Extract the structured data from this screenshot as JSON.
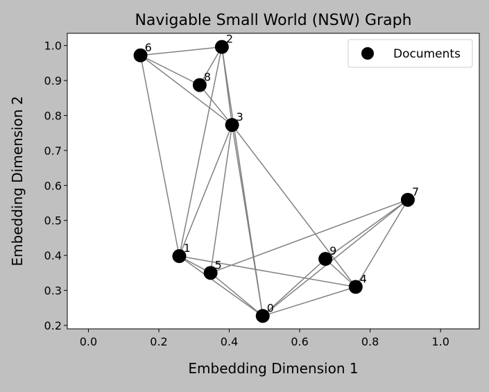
{
  "chart_data": {
    "type": "scatter",
    "title": "Navigable Small World (NSW) Graph",
    "xlabel": "Embedding Dimension 1",
    "ylabel": "Embedding Dimension 2",
    "xlim": [
      -0.06,
      1.11
    ],
    "ylim": [
      0.19,
      1.035
    ],
    "xticks": [
      "0.0",
      "0.2",
      "0.4",
      "0.6",
      "0.8",
      "1.0"
    ],
    "yticks": [
      "0.2",
      "0.3",
      "0.4",
      "0.5",
      "0.6",
      "0.7",
      "0.8",
      "0.9",
      "1.0"
    ],
    "legend": {
      "label": "Documents",
      "placement": "top-right"
    },
    "grid": false,
    "point_color": "#000000",
    "edge_color": "#808080",
    "points": [
      {
        "label": "0",
        "x": 0.495,
        "y": 0.227
      },
      {
        "label": "1",
        "x": 0.258,
        "y": 0.398
      },
      {
        "label": "2",
        "x": 0.379,
        "y": 0.996
      },
      {
        "label": "3",
        "x": 0.408,
        "y": 0.773
      },
      {
        "label": "4",
        "x": 0.759,
        "y": 0.31
      },
      {
        "label": "5",
        "x": 0.347,
        "y": 0.35
      },
      {
        "label": "6",
        "x": 0.148,
        "y": 0.972
      },
      {
        "label": "7",
        "x": 0.907,
        "y": 0.559
      },
      {
        "label": "8",
        "x": 0.316,
        "y": 0.887
      },
      {
        "label": "9",
        "x": 0.673,
        "y": 0.39
      }
    ],
    "edges": [
      [
        6,
        2
      ],
      [
        6,
        8
      ],
      [
        6,
        3
      ],
      [
        6,
        1
      ],
      [
        2,
        8
      ],
      [
        2,
        3
      ],
      [
        2,
        1
      ],
      [
        2,
        0
      ],
      [
        8,
        3
      ],
      [
        3,
        1
      ],
      [
        3,
        5
      ],
      [
        3,
        0
      ],
      [
        3,
        4
      ],
      [
        1,
        5
      ],
      [
        1,
        0
      ],
      [
        1,
        4
      ],
      [
        5,
        0
      ],
      [
        5,
        7
      ],
      [
        0,
        9
      ],
      [
        0,
        7
      ],
      [
        0,
        4
      ],
      [
        9,
        7
      ],
      [
        9,
        4
      ],
      [
        4,
        7
      ]
    ]
  }
}
